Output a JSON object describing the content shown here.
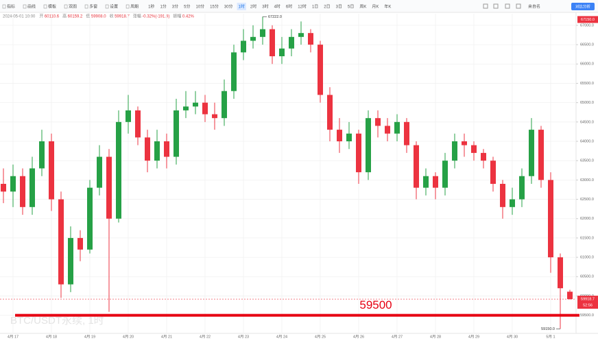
{
  "toolbar": {
    "items": [
      "指标",
      "画线",
      "模板",
      "双图",
      "多窗",
      "设置",
      "周期"
    ],
    "periods": [
      "1秒",
      "1分",
      "3分",
      "5分",
      "10分",
      "15分",
      "30分",
      "1时",
      "2时",
      "3时",
      "4时",
      "6时",
      "12时",
      "1日",
      "2日",
      "3日",
      "5日",
      "周K",
      "月K",
      "年K"
    ],
    "active_period": "1时",
    "right_label": "来自名",
    "right_button": "对比分析"
  },
  "info": {
    "date": "2024-05-01 10:00",
    "fields": [
      {
        "label": "开",
        "value": "60110.6"
      },
      {
        "label": "高",
        "value": "60159.2"
      },
      {
        "label": "低",
        "value": "59908.0"
      },
      {
        "label": "收",
        "value": "59918.7"
      },
      {
        "label": "涨幅",
        "value": "-0.32%(-191.9)"
      },
      {
        "label": "振幅",
        "value": "0.42%"
      }
    ]
  },
  "chart_data": {
    "type": "candlestick",
    "watermark": "BTC/USDT永续, 1时",
    "categories": [
      null,
      "4月 17",
      null,
      null,
      null,
      "4月 18",
      null,
      null,
      null,
      "4月 19",
      null,
      null,
      null,
      "4月 20",
      null,
      null,
      null,
      "4月 21",
      null,
      null,
      null,
      "4月 22",
      null,
      null,
      null,
      "4月 23",
      null,
      null,
      null,
      "4月 24",
      null,
      null,
      null,
      "4月 25",
      null,
      null,
      null,
      "4月 26",
      null,
      null,
      null,
      "4月 27",
      null,
      null,
      null,
      "4月 28",
      null,
      null,
      null,
      "4月 29",
      null,
      null,
      null,
      "4月 30",
      null,
      null,
      null,
      "5月 1",
      null,
      null
    ],
    "open": [
      62900,
      62700,
      63100,
      62300,
      63300,
      64000,
      62500,
      60300,
      61500,
      61200,
      62800,
      63600,
      62000,
      64500,
      64800,
      64100,
      63500,
      64000,
      63600,
      64800,
      64900,
      65000,
      64700,
      64600,
      65300,
      66300,
      66600,
      66700,
      66900,
      66200,
      66400,
      66700,
      66800,
      66500,
      65200,
      64300,
      64000,
      64200,
      63200,
      64600,
      64400,
      64200,
      64500,
      63900,
      62800,
      63100,
      62800,
      63500,
      64000,
      63900,
      63700,
      63500,
      62900,
      62300,
      62500,
      63100,
      64300,
      63000,
      61000,
      60110.6
    ],
    "high": [
      63300,
      63400,
      63300,
      63600,
      64300,
      64200,
      62700,
      61800,
      61700,
      63000,
      63900,
      63800,
      64800,
      65200,
      64900,
      64300,
      64300,
      64200,
      65100,
      65300,
      65300,
      65200,
      65000,
      65600,
      66500,
      66900,
      67000,
      67222,
      67000,
      66700,
      66900,
      67100,
      66900,
      66600,
      65400,
      64600,
      64500,
      64300,
      64800,
      64800,
      64600,
      64700,
      64600,
      64000,
      63300,
      63200,
      63700,
      64200,
      64200,
      64000,
      63800,
      63600,
      63000,
      62800,
      63300,
      64600,
      64400,
      63200,
      61100,
      60159.2
    ],
    "low": [
      62400,
      62300,
      62100,
      62100,
      63100,
      62200,
      59950,
      60100,
      60900,
      61100,
      62600,
      59590,
      61900,
      64200,
      63900,
      63200,
      63300,
      63300,
      63400,
      64600,
      64700,
      64500,
      64300,
      64400,
      65100,
      66100,
      66400,
      66500,
      66000,
      66000,
      66200,
      66500,
      66300,
      65000,
      64000,
      63700,
      63800,
      62900,
      63000,
      64100,
      64000,
      64000,
      63700,
      62500,
      62600,
      62500,
      62600,
      63300,
      63600,
      63500,
      63300,
      62700,
      62000,
      62100,
      62300,
      62900,
      62800,
      60600,
      59150,
      59908.0
    ],
    "close": [
      62700,
      63100,
      62300,
      63300,
      64000,
      62500,
      60300,
      61500,
      61200,
      62800,
      63600,
      62000,
      64500,
      64800,
      64100,
      63500,
      64000,
      63600,
      64800,
      64900,
      65000,
      64700,
      64600,
      65300,
      66300,
      66600,
      66700,
      66900,
      66200,
      66400,
      66700,
      66800,
      66500,
      65200,
      64300,
      64000,
      64200,
      63200,
      64600,
      64400,
      64200,
      64500,
      63900,
      62800,
      63100,
      62800,
      63500,
      64000,
      63900,
      63700,
      63500,
      62900,
      62300,
      62500,
      63100,
      64300,
      63000,
      61000,
      60200,
      59918.7
    ],
    "up_color": "#26a146",
    "down_color": "#ec3340",
    "ylim": [
      59050,
      67300
    ],
    "yticks": [
      {
        "value": 59500,
        "label": "59500.0"
      },
      {
        "value": 60000,
        "label": "60000.0"
      },
      {
        "value": 60500,
        "label": "60500.0"
      },
      {
        "value": 61000,
        "label": "61000.0"
      },
      {
        "value": 61500,
        "label": "61500.0"
      },
      {
        "value": 62000,
        "label": "62000.0"
      },
      {
        "value": 62500,
        "label": "62500.0"
      },
      {
        "value": 63000,
        "label": "63000.0"
      },
      {
        "value": 63500,
        "label": "63500.0"
      },
      {
        "value": 64000,
        "label": "64000.0"
      },
      {
        "value": 64500,
        "label": "64500.0"
      },
      {
        "value": 65000,
        "label": "65000.0"
      },
      {
        "value": 65500,
        "label": "65500.0"
      },
      {
        "value": 66000,
        "label": "66000.0"
      },
      {
        "value": 66500,
        "label": "66500.0"
      },
      {
        "value": 67000,
        "label": "67000.0"
      }
    ],
    "grid": true,
    "max_label": "67222.0",
    "min_label": "59150.0",
    "level": {
      "value": 59500,
      "label": "59500",
      "color": "#e60012"
    },
    "last_label": "59918.7",
    "countdown": "52:56",
    "crosshair_label": {
      "value": 67150,
      "label": "67150.0"
    }
  }
}
